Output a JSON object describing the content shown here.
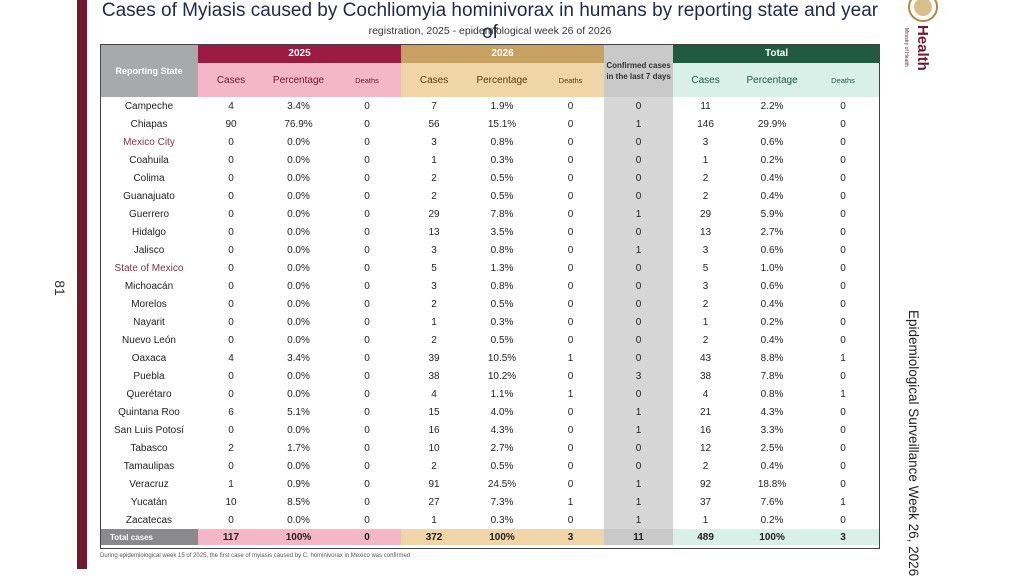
{
  "page_number": "81",
  "title": "Cases of Myiasis caused by Cochliomyia hominivorax in humans by reporting state and year of",
  "subtitle": "registration, 2025 - epidemiological week 26 of 2026",
  "health_brand": "Health",
  "ministry_label": "Ministry of Health",
  "side_text": "Epidemiological Surveillance Week 26, 2026",
  "footnote": "During epidemiological week 15 of 2025, the first case of myiasis caused by C. hominivorax in Mexico was confirmed",
  "colors": {
    "y2025": "#9b1b45",
    "y2026": "#c8a060",
    "total": "#205a40",
    "last7": "#c9c9c9",
    "sidebar": "#6b1a30"
  },
  "table": {
    "state_header": "Reporting State",
    "year_2025": "2025",
    "year_2026": "2026",
    "last7_header": "Confirmed cases in the last 7 days",
    "total_header": "Total",
    "sub": {
      "cases": "Cases",
      "percentage": "Percentage",
      "deaths": "Deaths"
    },
    "rows": [
      {
        "state": "Campeche",
        "c25": "4",
        "p25": "3.4%",
        "d25": "0",
        "c26": "7",
        "p26": "1.9%",
        "d26": "0",
        "l7": "0",
        "ct": "11",
        "pt": "2.2%",
        "dt": "0"
      },
      {
        "state": "Chiapas",
        "c25": "90",
        "p25": "76.9%",
        "d25": "0",
        "c26": "56",
        "p26": "15.1%",
        "d26": "0",
        "l7": "1",
        "ct": "146",
        "pt": "29.9%",
        "dt": "0"
      },
      {
        "state": "Mexico City",
        "c25": "0",
        "p25": "0.0%",
        "d25": "0",
        "c26": "3",
        "p26": "0.8%",
        "d26": "0",
        "l7": "0",
        "ct": "3",
        "pt": "0.6%",
        "dt": "0"
      },
      {
        "state": "Coahuila",
        "c25": "0",
        "p25": "0.0%",
        "d25": "0",
        "c26": "1",
        "p26": "0.3%",
        "d26": "0",
        "l7": "0",
        "ct": "1",
        "pt": "0.2%",
        "dt": "0"
      },
      {
        "state": "Colima",
        "c25": "0",
        "p25": "0.0%",
        "d25": "0",
        "c26": "2",
        "p26": "0.5%",
        "d26": "0",
        "l7": "0",
        "ct": "2",
        "pt": "0.4%",
        "dt": "0"
      },
      {
        "state": "Guanajuato",
        "c25": "0",
        "p25": "0.0%",
        "d25": "0",
        "c26": "2",
        "p26": "0.5%",
        "d26": "0",
        "l7": "0",
        "ct": "2",
        "pt": "0.4%",
        "dt": "0"
      },
      {
        "state": "Guerrero",
        "c25": "0",
        "p25": "0.0%",
        "d25": "0",
        "c26": "29",
        "p26": "7.8%",
        "d26": "0",
        "l7": "1",
        "ct": "29",
        "pt": "5.9%",
        "dt": "0"
      },
      {
        "state": "Hidalgo",
        "c25": "0",
        "p25": "0.0%",
        "d25": "0",
        "c26": "13",
        "p26": "3.5%",
        "d26": "0",
        "l7": "0",
        "ct": "13",
        "pt": "2.7%",
        "dt": "0"
      },
      {
        "state": "Jalisco",
        "c25": "0",
        "p25": "0.0%",
        "d25": "0",
        "c26": "3",
        "p26": "0.8%",
        "d26": "0",
        "l7": "1",
        "ct": "3",
        "pt": "0.6%",
        "dt": "0"
      },
      {
        "state": "State of Mexico",
        "c25": "0",
        "p25": "0.0%",
        "d25": "0",
        "c26": "5",
        "p26": "1.3%",
        "d26": "0",
        "l7": "0",
        "ct": "5",
        "pt": "1.0%",
        "dt": "0"
      },
      {
        "state": "Michoacán",
        "c25": "0",
        "p25": "0.0%",
        "d25": "0",
        "c26": "3",
        "p26": "0.8%",
        "d26": "0",
        "l7": "0",
        "ct": "3",
        "pt": "0.6%",
        "dt": "0"
      },
      {
        "state": "Morelos",
        "c25": "0",
        "p25": "0.0%",
        "d25": "0",
        "c26": "2",
        "p26": "0.5%",
        "d26": "0",
        "l7": "0",
        "ct": "2",
        "pt": "0.4%",
        "dt": "0"
      },
      {
        "state": "Nayarit",
        "c25": "0",
        "p25": "0.0%",
        "d25": "0",
        "c26": "1",
        "p26": "0.3%",
        "d26": "0",
        "l7": "0",
        "ct": "1",
        "pt": "0.2%",
        "dt": "0"
      },
      {
        "state": "Nuevo León",
        "c25": "0",
        "p25": "0.0%",
        "d25": "0",
        "c26": "2",
        "p26": "0.5%",
        "d26": "0",
        "l7": "0",
        "ct": "2",
        "pt": "0.4%",
        "dt": "0"
      },
      {
        "state": "Oaxaca",
        "c25": "4",
        "p25": "3.4%",
        "d25": "0",
        "c26": "39",
        "p26": "10.5%",
        "d26": "1",
        "l7": "0",
        "ct": "43",
        "pt": "8.8%",
        "dt": "1"
      },
      {
        "state": "Puebla",
        "c25": "0",
        "p25": "0.0%",
        "d25": "0",
        "c26": "38",
        "p26": "10.2%",
        "d26": "0",
        "l7": "3",
        "ct": "38",
        "pt": "7.8%",
        "dt": "0"
      },
      {
        "state": "Querétaro",
        "c25": "0",
        "p25": "0.0%",
        "d25": "0",
        "c26": "4",
        "p26": "1.1%",
        "d26": "1",
        "l7": "0",
        "ct": "4",
        "pt": "0.8%",
        "dt": "1"
      },
      {
        "state": "Quintana Roo",
        "c25": "6",
        "p25": "5.1%",
        "d25": "0",
        "c26": "15",
        "p26": "4.0%",
        "d26": "0",
        "l7": "1",
        "ct": "21",
        "pt": "4.3%",
        "dt": "0"
      },
      {
        "state": "San Luis Potosí",
        "c25": "0",
        "p25": "0.0%",
        "d25": "0",
        "c26": "16",
        "p26": "4.3%",
        "d26": "0",
        "l7": "1",
        "ct": "16",
        "pt": "3.3%",
        "dt": "0"
      },
      {
        "state": "Tabasco",
        "c25": "2",
        "p25": "1.7%",
        "d25": "0",
        "c26": "10",
        "p26": "2.7%",
        "d26": "0",
        "l7": "0",
        "ct": "12",
        "pt": "2.5%",
        "dt": "0"
      },
      {
        "state": "Tamaulipas",
        "c25": "0",
        "p25": "0.0%",
        "d25": "0",
        "c26": "2",
        "p26": "0.5%",
        "d26": "0",
        "l7": "0",
        "ct": "2",
        "pt": "0.4%",
        "dt": "0"
      },
      {
        "state": "Veracruz",
        "c25": "1",
        "p25": "0.9%",
        "d25": "0",
        "c26": "91",
        "p26": "24.5%",
        "d26": "0",
        "l7": "1",
        "ct": "92",
        "pt": "18.8%",
        "dt": "0"
      },
      {
        "state": "Yucatán",
        "c25": "10",
        "p25": "8.5%",
        "d25": "0",
        "c26": "27",
        "p26": "7.3%",
        "d26": "1",
        "l7": "1",
        "ct": "37",
        "pt": "7.6%",
        "dt": "1"
      },
      {
        "state": "Zacatecas",
        "c25": "0",
        "p25": "0.0%",
        "d25": "0",
        "c26": "1",
        "p26": "0.3%",
        "d26": "0",
        "l7": "1",
        "ct": "1",
        "pt": "0.2%",
        "dt": "0"
      }
    ],
    "total": {
      "state": "Total cases",
      "c25": "117",
      "p25": "100%",
      "d25": "0",
      "c26": "372",
      "p26": "100%",
      "d26": "3",
      "l7": "11",
      "ct": "489",
      "pt": "100%",
      "dt": "3"
    }
  }
}
